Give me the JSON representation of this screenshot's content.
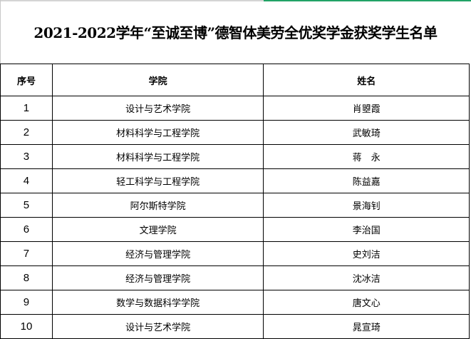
{
  "title": "2021-2022学年“至诚至博”德智体美劳全优奖学金获奖学生名单",
  "columns": [
    "序号",
    "学院",
    "姓名"
  ],
  "rows": [
    {
      "no": "1",
      "college": "设计与艺术学院",
      "name": "肖曌霞"
    },
    {
      "no": "2",
      "college": "材料科学与工程学院",
      "name": "武敏琦"
    },
    {
      "no": "3",
      "college": "材料科学与工程学院",
      "name": "蒋　永"
    },
    {
      "no": "4",
      "college": "轻工科学与工程学院",
      "name": "陈益嘉"
    },
    {
      "no": "5",
      "college": "阿尔斯特学院",
      "name": "景海钊"
    },
    {
      "no": "6",
      "college": "文理学院",
      "name": "李治国"
    },
    {
      "no": "7",
      "college": "经济与管理学院",
      "name": "史刘洁"
    },
    {
      "no": "8",
      "college": "经济与管理学院",
      "name": "沈冰洁"
    },
    {
      "no": "9",
      "college": "数学与数据科学学院",
      "name": "唐文心"
    },
    {
      "no": "10",
      "college": "设计与艺术学院",
      "name": "晁宣琦"
    }
  ]
}
